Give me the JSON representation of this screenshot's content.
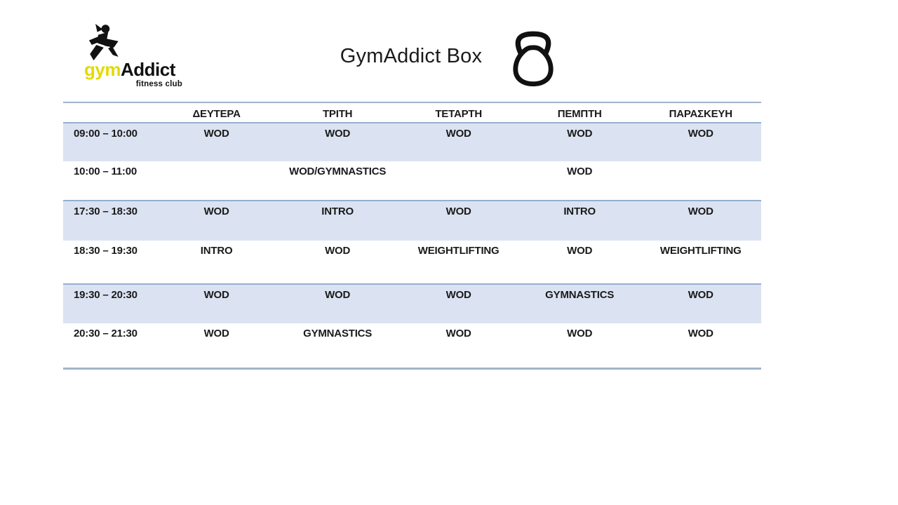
{
  "logo": {
    "brand_first": "gym",
    "brand_second": "Addict",
    "tagline": "fitness club",
    "icon": "runner-icon",
    "accent_yellow": "#e3da00"
  },
  "header": {
    "title": "GymAddict Box",
    "icon": "kettlebell-icon"
  },
  "colors": {
    "row_shade": "#dbe3f2",
    "rule": "#a3b4ca",
    "shade_border": "#95aed2",
    "text": "#1a1a1a"
  },
  "schedule": {
    "columns": [
      "",
      "ΔΕΥΤΕΡΑ",
      "ΤΡΙΤΗ",
      "ΤΕΤΑΡΤΗ",
      "ΠΕΜΠΤΗ",
      "ΠΑΡΑΣΚΕΥΗ"
    ],
    "rows": [
      {
        "time": "09:00 – 10:00",
        "shaded": true,
        "cells": [
          "WOD",
          "WOD",
          "WOD",
          "WOD",
          "WOD"
        ]
      },
      {
        "time": "10:00 – 11:00",
        "shaded": false,
        "cells": [
          "",
          "WOD/GYMNASTICS",
          "",
          "WOD",
          ""
        ]
      },
      {
        "time": "17:30 – 18:30",
        "shaded": true,
        "cells": [
          "WOD",
          "INTRO",
          "WOD",
          "INTRO",
          "WOD"
        ]
      },
      {
        "time": "18:30 – 19:30",
        "shaded": false,
        "cells": [
          "INTRO",
          "WOD",
          "WEIGHTLIFTING",
          "WOD",
          "WEIGHTLIFTING"
        ]
      },
      {
        "time": "19:30 – 20:30",
        "shaded": true,
        "cells": [
          "WOD",
          "WOD",
          "WOD",
          "GYMNASTICS",
          "WOD"
        ]
      },
      {
        "time": "20:30 – 21:30",
        "shaded": false,
        "cells": [
          "WOD",
          "GYMNASTICS",
          "WOD",
          "WOD",
          "WOD"
        ]
      }
    ]
  }
}
